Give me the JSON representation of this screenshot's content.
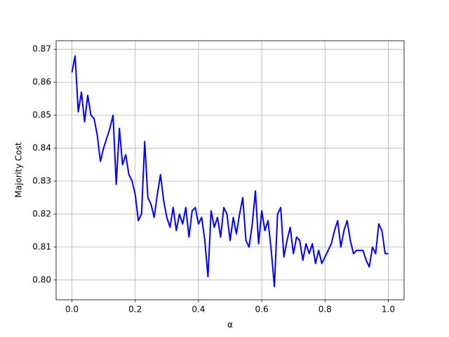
{
  "chart_data": {
    "type": "line",
    "xlabel": "α",
    "ylabel": "Majority Cost",
    "x": [
      0.0,
      0.01,
      0.02,
      0.03,
      0.04,
      0.05,
      0.06,
      0.07,
      0.08,
      0.09,
      0.1,
      0.11,
      0.12,
      0.13,
      0.14,
      0.15,
      0.16,
      0.17,
      0.18,
      0.19,
      0.2,
      0.21,
      0.22,
      0.23,
      0.24,
      0.25,
      0.26,
      0.27,
      0.28,
      0.29,
      0.3,
      0.31,
      0.32,
      0.33,
      0.34,
      0.35,
      0.36,
      0.37,
      0.38,
      0.39,
      0.4,
      0.41,
      0.42,
      0.43,
      0.44,
      0.45,
      0.46,
      0.47,
      0.48,
      0.49,
      0.5,
      0.51,
      0.52,
      0.53,
      0.54,
      0.55,
      0.56,
      0.57,
      0.58,
      0.59,
      0.6,
      0.61,
      0.62,
      0.63,
      0.64,
      0.65,
      0.66,
      0.67,
      0.68,
      0.69,
      0.7,
      0.71,
      0.72,
      0.73,
      0.74,
      0.75,
      0.76,
      0.77,
      0.78,
      0.79,
      0.8,
      0.81,
      0.82,
      0.83,
      0.84,
      0.85,
      0.86,
      0.87,
      0.88,
      0.89,
      0.9,
      0.91,
      0.92,
      0.93,
      0.94,
      0.95,
      0.96,
      0.97,
      0.98,
      0.99,
      1.0
    ],
    "series": [
      {
        "name": "Majority Cost",
        "color": "#0000ff",
        "values": [
          0.863,
          0.868,
          0.851,
          0.857,
          0.848,
          0.856,
          0.85,
          0.849,
          0.844,
          0.836,
          0.84,
          0.843,
          0.846,
          0.85,
          0.829,
          0.846,
          0.835,
          0.838,
          0.832,
          0.83,
          0.826,
          0.818,
          0.82,
          0.842,
          0.825,
          0.823,
          0.819,
          0.826,
          0.832,
          0.824,
          0.819,
          0.816,
          0.822,
          0.815,
          0.82,
          0.817,
          0.822,
          0.813,
          0.821,
          0.822,
          0.817,
          0.819,
          0.812,
          0.801,
          0.821,
          0.816,
          0.819,
          0.813,
          0.822,
          0.82,
          0.812,
          0.819,
          0.814,
          0.82,
          0.825,
          0.812,
          0.81,
          0.817,
          0.827,
          0.811,
          0.821,
          0.815,
          0.818,
          0.809,
          0.798,
          0.82,
          0.822,
          0.807,
          0.812,
          0.816,
          0.808,
          0.813,
          0.812,
          0.806,
          0.811,
          0.808,
          0.811,
          0.805,
          0.809,
          0.805,
          0.807,
          0.809,
          0.811,
          0.815,
          0.818,
          0.81,
          0.815,
          0.818,
          0.812,
          0.808,
          0.809,
          0.809,
          0.809,
          0.806,
          0.804,
          0.81,
          0.808,
          0.817,
          0.815,
          0.808,
          0.808
        ]
      }
    ],
    "xlim": [
      -0.05,
      1.05
    ],
    "ylim": [
      0.794,
      0.8726
    ],
    "xticks": [
      {
        "value": 0,
        "label": "0.0"
      },
      0.2,
      0.4,
      0.6,
      0.8,
      {
        "value": 1,
        "label": "1.0"
      }
    ],
    "yticks": [
      {
        "value": 0.8,
        "label": "0.80"
      },
      0.81,
      0.82,
      0.83,
      0.84,
      0.85,
      0.86,
      0.87
    ],
    "grid": true
  }
}
